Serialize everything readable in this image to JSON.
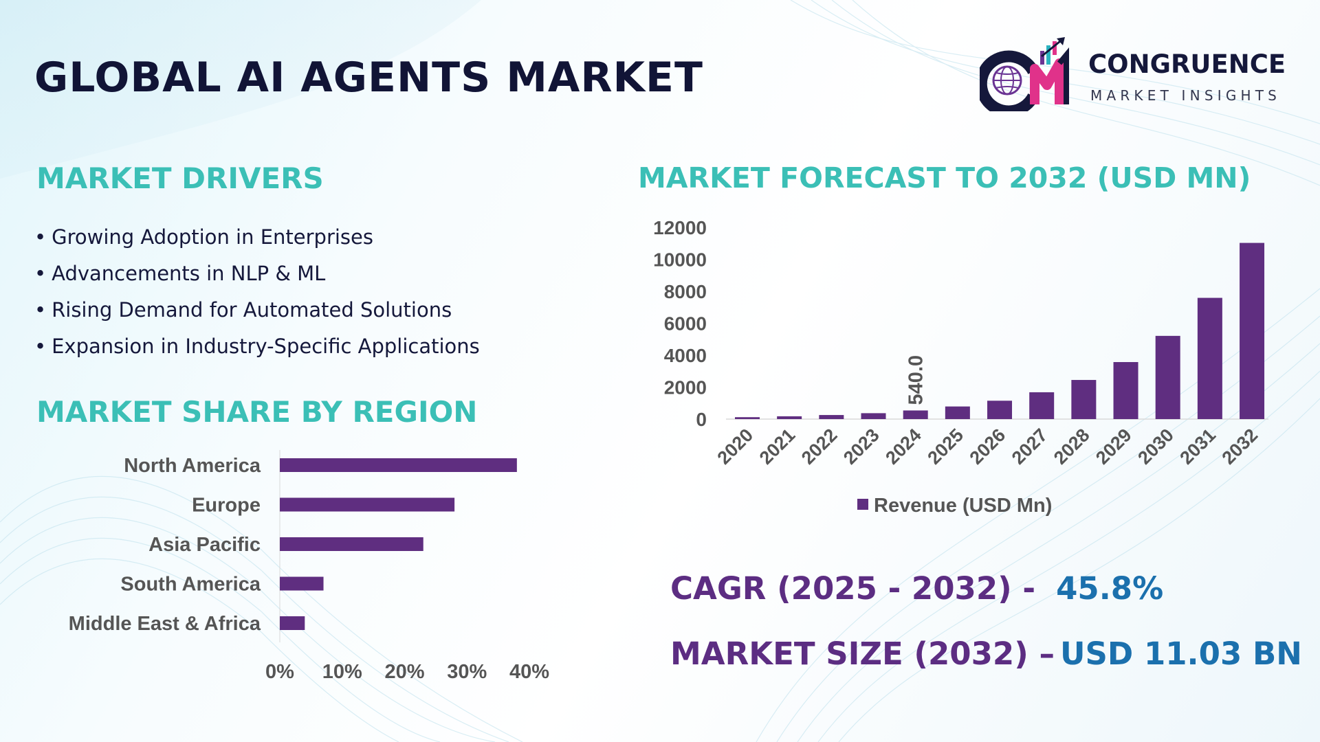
{
  "header": {
    "title": "GLOBAL AI AGENTS MARKET"
  },
  "logo": {
    "name": "CONGRUENCE",
    "tagline": "MARKET INSIGHTS",
    "icon": "cm-globe-growth-logo-icon"
  },
  "drivers": {
    "title": "MARKET DRIVERS",
    "bullet": "•",
    "items": [
      "Growing Adoption in Enterprises",
      "Advancements in NLP & ML",
      "Rising Demand for Automated Solutions",
      "Expansion in Industry-Specific Applications"
    ]
  },
  "region": {
    "title": "MARKET SHARE BY REGION"
  },
  "forecast": {
    "title": "MARKET FORECAST TO 2032 (USD MN)"
  },
  "stats": {
    "cagr_label": "CAGR (2025 - 2032) -",
    "cagr_value": "45.8%",
    "size_label": "MARKET SIZE (2032) –",
    "size_value": "USD 11.03 BN"
  },
  "colors": {
    "bar": "#5f2e80",
    "teal_heading": "#3bbfb6",
    "navy": "#111436",
    "purple_text": "#5c2d82",
    "blue_value": "#1b70ad"
  },
  "chart_data": [
    {
      "type": "bar",
      "orientation": "horizontal",
      "title": "MARKET SHARE BY REGION",
      "categories": [
        "North America",
        "Europe",
        "Asia Pacific",
        "South America",
        "Middle East & Africa"
      ],
      "values": [
        38,
        28,
        23,
        7,
        4
      ],
      "xlim": [
        0,
        40
      ],
      "xticks": [
        "0%",
        "10%",
        "20%",
        "30%",
        "40%"
      ],
      "unit": "%"
    },
    {
      "type": "bar",
      "title": "MARKET FORECAST TO 2032 (USD MN)",
      "categories": [
        "2020",
        "2021",
        "2022",
        "2023",
        "2024",
        "2025",
        "2026",
        "2027",
        "2028",
        "2029",
        "2030",
        "2031",
        "2032"
      ],
      "series": [
        {
          "name": "Revenue (USD Mn)",
          "values": [
            120,
            175,
            255,
            370,
            540,
            790,
            1150,
            1680,
            2450,
            3570,
            5210,
            7590,
            11030
          ]
        }
      ],
      "ylim": [
        0,
        12000
      ],
      "yticks": [
        "0",
        "2000",
        "4000",
        "6000",
        "8000",
        "10000",
        "12000"
      ],
      "data_labels": [
        {
          "category": "2024",
          "label": "540.0"
        }
      ],
      "legend": "bottom"
    }
  ]
}
